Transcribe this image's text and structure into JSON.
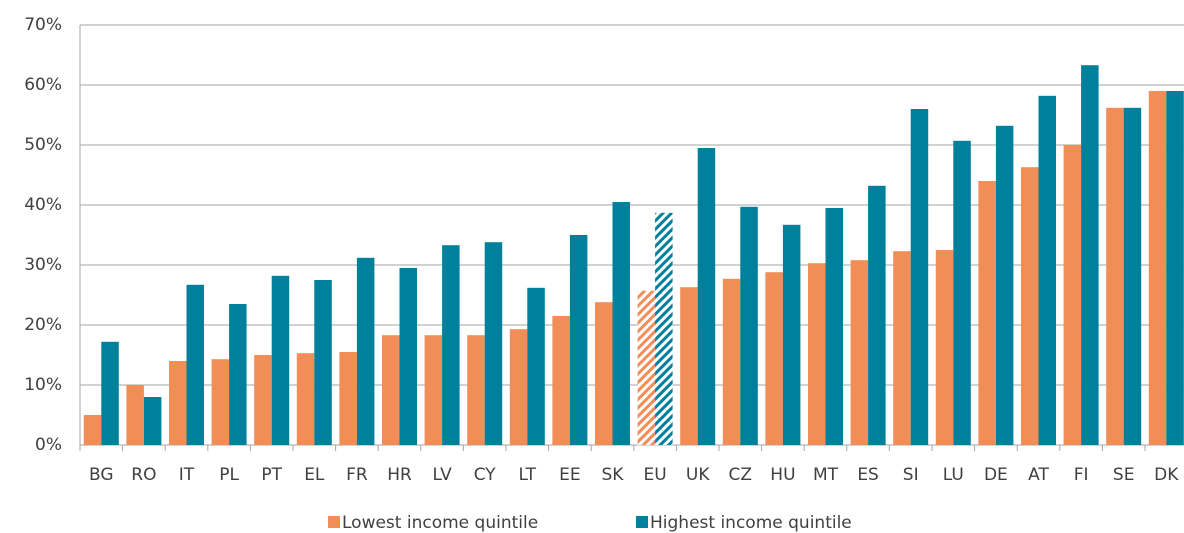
{
  "chart_data": {
    "type": "bar",
    "categories": [
      "BG",
      "RO",
      "IT",
      "PL",
      "PT",
      "EL",
      "FR",
      "HR",
      "LV",
      "CY",
      "LT",
      "EE",
      "SK",
      "EU",
      "UK",
      "CZ",
      "HU",
      "MT",
      "ES",
      "SI",
      "LU",
      "DE",
      "AT",
      "FI",
      "SE",
      "DK"
    ],
    "series": [
      {
        "name": "Lowest income quintile",
        "color": "#f18d56",
        "values": [
          5.0,
          10.0,
          14.0,
          14.3,
          15.0,
          15.3,
          15.5,
          18.3,
          18.3,
          18.3,
          19.3,
          21.5,
          23.8,
          25.7,
          26.3,
          27.7,
          28.8,
          30.3,
          30.8,
          32.3,
          32.5,
          44.0,
          46.3,
          50.0,
          56.2,
          59.0
        ]
      },
      {
        "name": "Highest income quintile",
        "color": "#00809a",
        "values": [
          17.2,
          8.0,
          26.7,
          23.5,
          28.2,
          27.5,
          31.2,
          29.5,
          33.3,
          33.8,
          26.2,
          35.0,
          40.5,
          38.7,
          49.5,
          39.7,
          36.7,
          39.5,
          43.2,
          56.0,
          50.7,
          53.2,
          58.2,
          63.3,
          56.2,
          59.0
        ]
      }
    ],
    "hatched_index": 13,
    "ylim": [
      0,
      70
    ],
    "yticks": [
      {
        "value": 0,
        "label": "0%"
      },
      {
        "value": 10,
        "label": "10%"
      },
      {
        "value": 20,
        "label": "20%"
      },
      {
        "value": 30,
        "label": "30%"
      },
      {
        "value": 40,
        "label": "40%"
      },
      {
        "value": 50,
        "label": "50%"
      },
      {
        "value": 60,
        "label": "60%"
      },
      {
        "value": 70,
        "label": "70%"
      }
    ],
    "grid": true,
    "legend": "bottom"
  }
}
